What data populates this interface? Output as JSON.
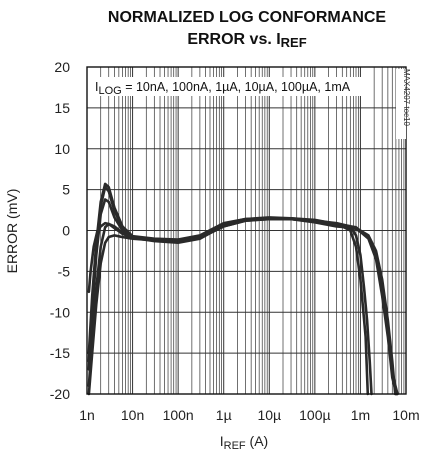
{
  "chart_data": {
    "type": "line",
    "title_line1": "NORMALIZED LOG CONFORMANCE",
    "title_line2": "ERROR vs. I",
    "title_line2_sub": "REF",
    "ylabel": "ERROR (mV)",
    "xlabel_main": "I",
    "xlabel_sub": "REF",
    "xlabel_unit": " (A)",
    "x_scale": "log",
    "xlim": [
      1e-09,
      0.01
    ],
    "ylim": [
      -20,
      20
    ],
    "grid": true,
    "x_tick_labels": [
      "1n",
      "10n",
      "100n",
      "1µ",
      "10µ",
      "100µ",
      "1m",
      "10m"
    ],
    "y_tick_labels": [
      "20",
      "15",
      "10",
      "5",
      "0",
      "-5",
      "-10",
      "-15",
      "-20"
    ],
    "annotation_main": "I",
    "annotation_sub": "LOG",
    "annotation_rest": " = 10nA, 100nA, 1µA, 10µA, 100µA, 1mA",
    "figure_code": "MAX4207 toc10",
    "series": [
      {
        "x": [
          1.1e-09,
          1.3e-09,
          1.6e-09,
          2e-09,
          2.5e-09,
          3e-09,
          4e-09,
          6e-09,
          1e-08,
          3e-08,
          1e-07,
          3e-07,
          1e-06,
          3e-06,
          1e-05,
          3e-05,
          0.0001,
          0.0003,
          0.0008,
          0.0015,
          0.0022,
          0.003,
          0.004,
          0.005,
          0.0058
        ],
        "y": [
          -19,
          -13,
          -7,
          -2,
          0.4,
          0.8,
          0.5,
          -0.3,
          -0.9,
          -1.3,
          -1.5,
          -1.0,
          0.6,
          1.3,
          1.5,
          1.4,
          1.0,
          0.5,
          0.3,
          -0.6,
          -2.5,
          -6,
          -11,
          -16,
          -20
        ]
      },
      {
        "x": [
          1.1e-09,
          1.3e-09,
          1.6e-09,
          2e-09,
          2.5e-09,
          3e-09,
          4e-09,
          6e-09,
          1e-08,
          3e-08,
          1e-07,
          3e-07,
          1e-06,
          3e-06,
          1e-05,
          3e-05,
          0.0001,
          0.0003,
          0.0008,
          0.0015,
          0.0022,
          0.003,
          0.004,
          0.005,
          0.006
        ],
        "y": [
          -17,
          -10,
          -3,
          2,
          3.8,
          3.5,
          1.6,
          0,
          -0.9,
          -1.2,
          -1.3,
          -0.8,
          0.7,
          1.3,
          1.5,
          1.4,
          1.1,
          0.6,
          0.2,
          -0.8,
          -3,
          -7,
          -12,
          -17,
          -20
        ]
      },
      {
        "x": [
          1.1e-09,
          1.3e-09,
          1.6e-09,
          2e-09,
          2.5e-09,
          3e-09,
          4e-09,
          6e-09,
          1e-08,
          3e-08,
          1e-07,
          3e-07,
          1e-06,
          3e-06,
          1e-05,
          3e-05,
          0.0001,
          0.0003,
          0.0008,
          0.0015,
          0.0022,
          0.003,
          0.004,
          0.005,
          0.0062
        ],
        "y": [
          -16,
          -9,
          -2,
          3,
          5.3,
          4.8,
          2.4,
          0.3,
          -0.8,
          -1.1,
          -1.2,
          -0.7,
          0.8,
          1.4,
          1.5,
          1.5,
          1.2,
          0.7,
          0.3,
          -1,
          -3.5,
          -8,
          -13,
          -18,
          -20
        ]
      },
      {
        "x": [
          1.1e-09,
          1.3e-09,
          1.6e-09,
          2e-09,
          2.5e-09,
          3e-09,
          4e-09,
          6e-09,
          1e-08,
          3e-08,
          1e-07,
          3e-07,
          1e-06,
          3e-06,
          1e-05,
          3e-05,
          0.0001,
          0.0003,
          0.0008,
          0.0015,
          0.0022,
          0.003,
          0.004,
          0.005,
          0.0065
        ],
        "y": [
          -15,
          -8,
          -1.5,
          3.5,
          5.7,
          5.3,
          2.8,
          0.5,
          -0.7,
          -1.0,
          -1.1,
          -0.6,
          0.9,
          1.4,
          1.6,
          1.5,
          1.3,
          0.8,
          0.4,
          -0.9,
          -3,
          -7.5,
          -12.5,
          -17.5,
          -20
        ]
      },
      {
        "x": [
          1.1e-09,
          1.3e-09,
          1.6e-09,
          2e-09,
          2.5e-09,
          3e-09,
          4e-09,
          6e-09,
          1e-08,
          3e-08,
          1e-07,
          3e-07,
          1e-06,
          3e-06,
          1e-05,
          3e-05,
          0.0001,
          0.0003,
          0.0006,
          0.0008,
          0.001,
          0.0012,
          0.0014,
          0.0016,
          0.00175
        ],
        "y": [
          -20,
          -15,
          -9,
          -4,
          -1.5,
          -0.8,
          -0.6,
          -0.8,
          -1.0,
          -1.2,
          -1.3,
          -0.9,
          0.5,
          1.2,
          1.4,
          1.4,
          1.2,
          0.9,
          0.5,
          -0.6,
          -3,
          -7,
          -11,
          -16,
          -20
        ]
      },
      {
        "x": [
          1.1e-09,
          1.2e-09,
          1.4e-09,
          1.7e-09,
          2e-09,
          2.5e-09,
          3e-09,
          4e-09,
          6e-09,
          1e-08,
          3e-08,
          1e-07,
          3e-07,
          1e-06,
          3e-06,
          1e-05,
          3e-05,
          0.0001,
          0.0002,
          0.0004,
          0.0006,
          0.0008,
          0.001,
          0.0013,
          0.00145
        ],
        "y": [
          -7.5,
          -5,
          -2,
          0,
          0.5,
          0.9,
          0.8,
          0.3,
          -0.4,
          -0.9,
          -1.2,
          -1.3,
          -0.9,
          0.5,
          1.2,
          1.4,
          1.4,
          1.2,
          0.9,
          0.5,
          0,
          -2,
          -6,
          -13,
          -20
        ]
      }
    ]
  }
}
